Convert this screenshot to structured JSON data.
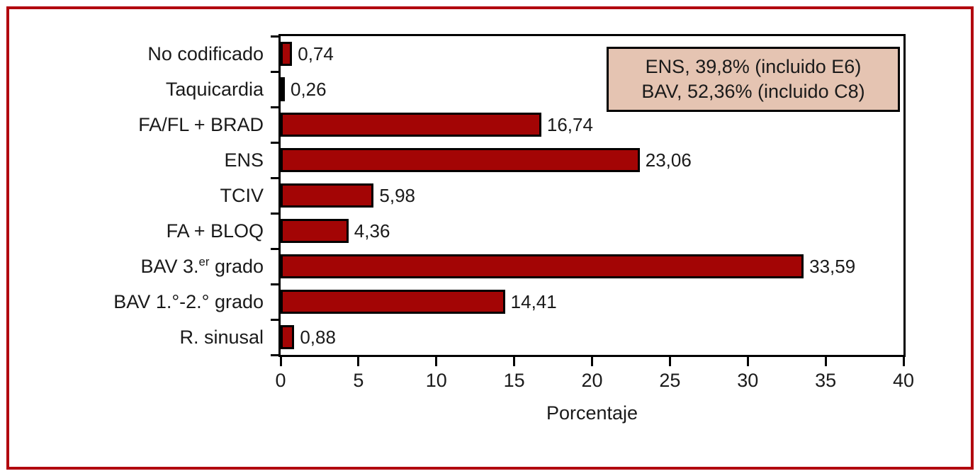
{
  "chart_data": {
    "type": "bar",
    "orientation": "horizontal",
    "title": "",
    "categories": [
      "No codificado",
      "Taquicardia",
      "FA/FL + BRAD",
      "ENS",
      "TCIV",
      "FA + BLOQ",
      "BAV 3.er grado",
      "BAV 1.°-2.° grado",
      "R. sinusal"
    ],
    "categories_rich": [
      {
        "pre": "No codificado",
        "sup": "",
        "post": ""
      },
      {
        "pre": "Taquicardia",
        "sup": "",
        "post": ""
      },
      {
        "pre": "FA/FL + BRAD",
        "sup": "",
        "post": ""
      },
      {
        "pre": "ENS",
        "sup": "",
        "post": ""
      },
      {
        "pre": "TCIV",
        "sup": "",
        "post": ""
      },
      {
        "pre": "FA + BLOQ",
        "sup": "",
        "post": ""
      },
      {
        "pre": "BAV 3.",
        "sup": "er",
        "post": " grado"
      },
      {
        "pre": "BAV 1.°-2.° grado",
        "sup": "",
        "post": ""
      },
      {
        "pre": "R. sinusal",
        "sup": "",
        "post": ""
      }
    ],
    "values": [
      0.74,
      0.26,
      16.74,
      23.06,
      5.98,
      4.36,
      33.59,
      14.41,
      0.88
    ],
    "value_labels": [
      "0,74",
      "0,26",
      "16,74",
      "23,06",
      "5,98",
      "4,36",
      "33,59",
      "14,41",
      "0,88"
    ],
    "xlabel": "Porcentaje",
    "ylabel": "",
    "xlim": [
      0,
      40
    ],
    "xticks": [
      0,
      5,
      10,
      15,
      20,
      25,
      30,
      35,
      40
    ],
    "xtick_labels": [
      "0",
      "5",
      "10",
      "15",
      "20",
      "25",
      "30",
      "35",
      "40"
    ],
    "grid": false,
    "legend_position": "top-right",
    "legend_lines": [
      "ENS, 39,8% (incluido E6)",
      "BAV, 52,36% (incluido C8)"
    ],
    "colors": {
      "bar_fill": "#a30505",
      "bar_border": "#000000",
      "plot_frame": "#000000",
      "outer_border": "#b2040e",
      "legend_fill": "#e5c4b2",
      "legend_border": "#000000",
      "text": "#1a1a1a"
    }
  }
}
